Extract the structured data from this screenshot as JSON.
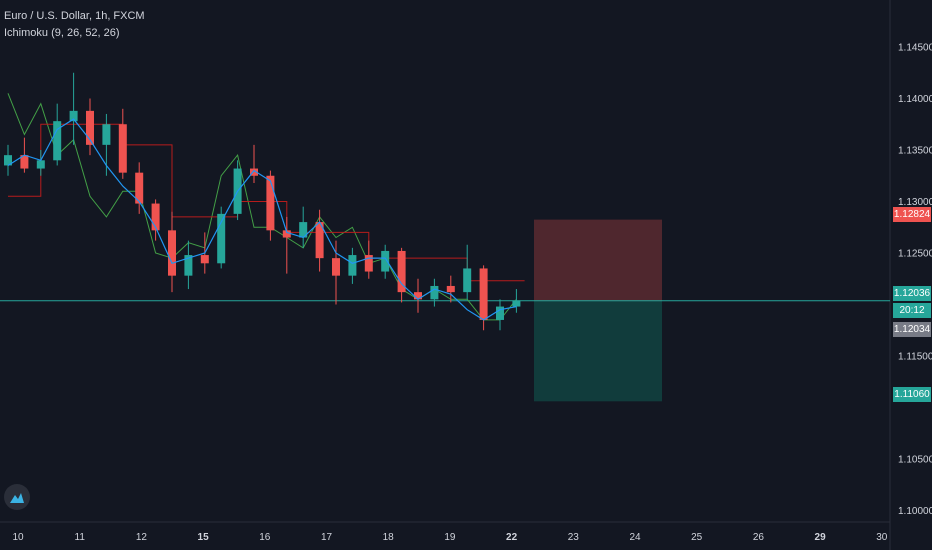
{
  "header": {
    "symbol_line": "Euro / U.S. Dollar, 1h, FXCM",
    "indicator_line": "Ichimoku (9, 26, 52, 26)"
  },
  "logo": {
    "icon": "tradingview-logo-icon"
  },
  "colors": {
    "background": "#131722",
    "up_candle": "#26a69a",
    "down_candle": "#ef5350",
    "tenkan": "#2196f3",
    "kijun": "#b71c1c",
    "chikou": "#43a047",
    "current_line": "#26a69a",
    "stop_zone": "#5b2a30",
    "target_zone": "#12403f",
    "axis_text": "#d1d4dc"
  },
  "price_labels": {
    "stop": "1.12824",
    "current": "1.12036",
    "countdown": "20:12",
    "bid": "1.12034",
    "target": "1.11060"
  },
  "chart_data": {
    "type": "candlestick",
    "symbol": "Euro / U.S. Dollar",
    "timeframe": "1h",
    "source": "FXCM",
    "indicator": "Ichimoku (9, 26, 52, 26)",
    "x_ticks": [
      "10",
      "11",
      "12",
      "15",
      "16",
      "17",
      "18",
      "19",
      "22",
      "23",
      "24",
      "25",
      "26",
      "29",
      "30"
    ],
    "y_ticks": [
      "1.14500",
      "1.14000",
      "1.13500",
      "1.13000",
      "1.12500",
      "1.11500",
      "1.10500",
      "1.10000"
    ],
    "ylim": [
      1.0975,
      1.1475
    ],
    "current_price": 1.12036,
    "position": {
      "entry": 1.12036,
      "stop": 1.12824,
      "target": 1.1106
    },
    "tenkan_sen": [
      [
        0,
        1.1335
      ],
      [
        1,
        1.1345
      ],
      [
        2,
        1.134
      ],
      [
        3,
        1.137
      ],
      [
        4,
        1.138
      ],
      [
        5,
        1.136
      ],
      [
        6,
        1.1335
      ],
      [
        7,
        1.1315
      ],
      [
        8,
        1.13
      ],
      [
        9,
        1.1275
      ],
      [
        10,
        1.124
      ],
      [
        11,
        1.1245
      ],
      [
        12,
        1.125
      ],
      [
        13,
        1.128
      ],
      [
        14,
        1.131
      ],
      [
        15,
        1.133
      ],
      [
        16,
        1.132
      ],
      [
        17,
        1.127
      ],
      [
        18,
        1.1265
      ],
      [
        19,
        1.128
      ],
      [
        20,
        1.125
      ],
      [
        21,
        1.124
      ],
      [
        22,
        1.1245
      ],
      [
        23,
        1.1245
      ],
      [
        24,
        1.122
      ],
      [
        25,
        1.1205
      ],
      [
        26,
        1.1215
      ],
      [
        27,
        1.121
      ],
      [
        28,
        1.1195
      ],
      [
        29,
        1.1185
      ],
      [
        30,
        1.1195
      ],
      [
        31,
        1.1198
      ]
    ],
    "kijun_sen": [
      [
        0,
        1.1305
      ],
      [
        2,
        1.1305
      ],
      [
        2,
        1.1375
      ],
      [
        7,
        1.1375
      ],
      [
        7,
        1.1355
      ],
      [
        10,
        1.1355
      ],
      [
        10,
        1.1285
      ],
      [
        14,
        1.1285
      ],
      [
        14,
        1.13
      ],
      [
        17,
        1.13
      ],
      [
        17,
        1.127
      ],
      [
        22,
        1.127
      ],
      [
        22,
        1.1245
      ],
      [
        28,
        1.1245
      ],
      [
        28,
        1.1223
      ],
      [
        31.5,
        1.1223
      ]
    ],
    "chikou_span": [
      [
        0,
        1.1405
      ],
      [
        1,
        1.1365
      ],
      [
        2,
        1.1395
      ],
      [
        3,
        1.1345
      ],
      [
        4,
        1.136
      ],
      [
        5,
        1.1305
      ],
      [
        6,
        1.1285
      ],
      [
        7,
        1.131
      ],
      [
        8,
        1.131
      ],
      [
        9,
        1.125
      ],
      [
        10,
        1.1245
      ],
      [
        11,
        1.126
      ],
      [
        12,
        1.1255
      ],
      [
        13,
        1.1325
      ],
      [
        14,
        1.1345
      ],
      [
        15,
        1.1275
      ],
      [
        16,
        1.1275
      ],
      [
        17,
        1.1265
      ],
      [
        18,
        1.1255
      ],
      [
        19,
        1.1285
      ],
      [
        20,
        1.1265
      ],
      [
        21,
        1.1275
      ],
      [
        22,
        1.124
      ],
      [
        23,
        1.1245
      ],
      [
        24,
        1.1215
      ],
      [
        25,
        1.1205
      ],
      [
        26,
        1.1215
      ],
      [
        27,
        1.1205
      ],
      [
        28,
        1.1205
      ],
      [
        29,
        1.1185
      ],
      [
        30,
        1.1185
      ],
      [
        31,
        1.1205
      ]
    ],
    "candles": [
      {
        "o": 1.1335,
        "h": 1.1355,
        "l": 1.1325,
        "c": 1.1345
      },
      {
        "o": 1.1345,
        "h": 1.1362,
        "l": 1.1328,
        "c": 1.1332
      },
      {
        "o": 1.1332,
        "h": 1.135,
        "l": 1.1325,
        "c": 1.134
      },
      {
        "o": 1.134,
        "h": 1.1395,
        "l": 1.1335,
        "c": 1.1378
      },
      {
        "o": 1.1378,
        "h": 1.1425,
        "l": 1.1355,
        "c": 1.1388
      },
      {
        "o": 1.1388,
        "h": 1.14,
        "l": 1.1345,
        "c": 1.1355
      },
      {
        "o": 1.1355,
        "h": 1.1385,
        "l": 1.1325,
        "c": 1.1375
      },
      {
        "o": 1.1375,
        "h": 1.139,
        "l": 1.1322,
        "c": 1.1328
      },
      {
        "o": 1.1328,
        "h": 1.1338,
        "l": 1.1288,
        "c": 1.1298
      },
      {
        "o": 1.1298,
        "h": 1.1302,
        "l": 1.1262,
        "c": 1.1272
      },
      {
        "o": 1.1272,
        "h": 1.129,
        "l": 1.1212,
        "c": 1.1228
      },
      {
        "o": 1.1228,
        "h": 1.1262,
        "l": 1.1215,
        "c": 1.1248
      },
      {
        "o": 1.1248,
        "h": 1.127,
        "l": 1.123,
        "c": 1.124
      },
      {
        "o": 1.124,
        "h": 1.1295,
        "l": 1.1235,
        "c": 1.1288
      },
      {
        "o": 1.1288,
        "h": 1.134,
        "l": 1.1282,
        "c": 1.1332
      },
      {
        "o": 1.1332,
        "h": 1.1355,
        "l": 1.1318,
        "c": 1.1325
      },
      {
        "o": 1.1325,
        "h": 1.133,
        "l": 1.1262,
        "c": 1.1272
      },
      {
        "o": 1.1272,
        "h": 1.1285,
        "l": 1.123,
        "c": 1.1265
      },
      {
        "o": 1.1265,
        "h": 1.1295,
        "l": 1.1255,
        "c": 1.128
      },
      {
        "o": 1.128,
        "h": 1.1292,
        "l": 1.1232,
        "c": 1.1245
      },
      {
        "o": 1.1245,
        "h": 1.1262,
        "l": 1.12,
        "c": 1.1228
      },
      {
        "o": 1.1228,
        "h": 1.1255,
        "l": 1.122,
        "c": 1.1248
      },
      {
        "o": 1.1248,
        "h": 1.1262,
        "l": 1.1225,
        "c": 1.1232
      },
      {
        "o": 1.1232,
        "h": 1.1258,
        "l": 1.1225,
        "c": 1.1252
      },
      {
        "o": 1.1252,
        "h": 1.1255,
        "l": 1.1202,
        "c": 1.1212
      },
      {
        "o": 1.1212,
        "h": 1.1225,
        "l": 1.1192,
        "c": 1.1205
      },
      {
        "o": 1.1205,
        "h": 1.1225,
        "l": 1.1198,
        "c": 1.1218
      },
      {
        "o": 1.1218,
        "h": 1.1228,
        "l": 1.1202,
        "c": 1.1212
      },
      {
        "o": 1.1212,
        "h": 1.1258,
        "l": 1.1205,
        "c": 1.1235
      },
      {
        "o": 1.1235,
        "h": 1.1238,
        "l": 1.1175,
        "c": 1.1185
      },
      {
        "o": 1.1185,
        "h": 1.1205,
        "l": 1.1175,
        "c": 1.1198
      },
      {
        "o": 1.1198,
        "h": 1.1215,
        "l": 1.1192,
        "c": 1.1204
      }
    ]
  }
}
